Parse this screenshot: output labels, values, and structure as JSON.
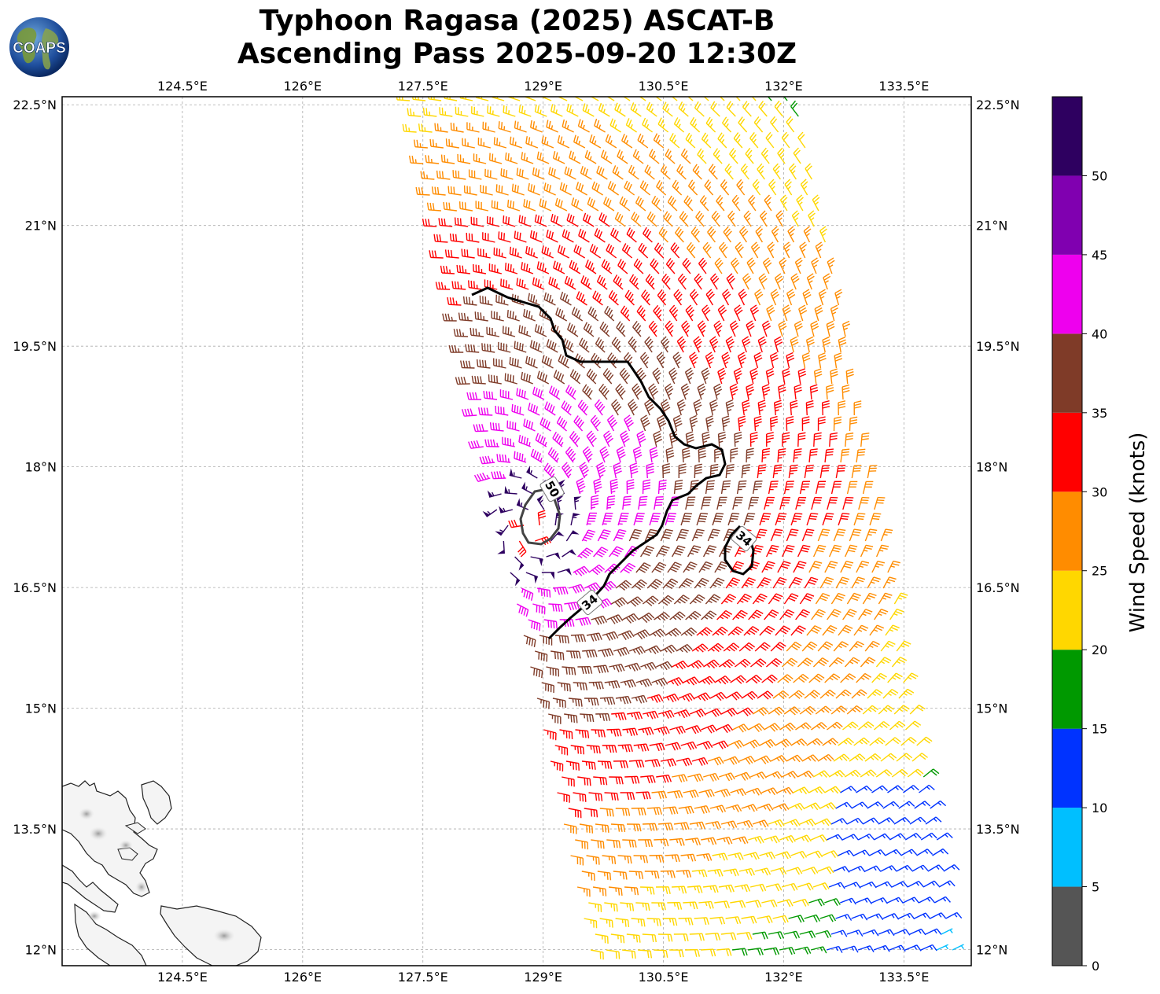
{
  "title": {
    "line1": "Typhoon Ragasa (2025) ASCAT-B",
    "line2": "Ascending Pass 2025-09-20 12:30Z"
  },
  "logo": {
    "text": "COAPS",
    "icon": "globe-logo-icon"
  },
  "map": {
    "lon_range": [
      123,
      134.34
    ],
    "lat_range": [
      11.8,
      22.6
    ],
    "lon_ticks": [
      "124.5°E",
      "126°E",
      "127.5°E",
      "129°E",
      "130.5°E",
      "132°E",
      "133.5°E"
    ],
    "lon_tick_values": [
      124.5,
      126,
      127.5,
      129,
      130.5,
      132,
      133.5
    ],
    "lat_ticks": [
      "22.5°N",
      "21°N",
      "19.5°N",
      "18°N",
      "16.5°N",
      "15°N",
      "13.5°N",
      "12°N"
    ],
    "lat_tick_values": [
      22.5,
      21,
      19.5,
      18,
      16.5,
      15,
      13.5,
      12
    ],
    "grid": true,
    "land": "Philippines (Luzon/Samar) in lower-left corner",
    "storm_center": {
      "lon": 128.8,
      "lat": 17.2
    }
  },
  "contours": [
    {
      "value": 34,
      "label": "34"
    },
    {
      "value": 34,
      "label": "34"
    },
    {
      "value": 50,
      "label": "50"
    }
  ],
  "colorbar": {
    "label": "Wind Speed (knots)",
    "ticks": [
      "0",
      "5",
      "10",
      "15",
      "20",
      "25",
      "30",
      "35",
      "40",
      "45",
      "50"
    ],
    "bins": [
      {
        "min": 0,
        "max": 5,
        "color": "#555555"
      },
      {
        "min": 5,
        "max": 10,
        "color": "#00bfff"
      },
      {
        "min": 10,
        "max": 15,
        "color": "#0033ff"
      },
      {
        "min": 15,
        "max": 20,
        "color": "#009900"
      },
      {
        "min": 20,
        "max": 25,
        "color": "#ffd700"
      },
      {
        "min": 25,
        "max": 30,
        "color": "#ff8c00"
      },
      {
        "min": 30,
        "max": 35,
        "color": "#ff0000"
      },
      {
        "min": 35,
        "max": 40,
        "color": "#7f3b28"
      },
      {
        "min": 40,
        "max": 45,
        "color": "#ee00ee"
      },
      {
        "min": 45,
        "max": 50,
        "color": "#8000b0"
      },
      {
        "min": 50,
        "max": 55,
        "color": "#2e0060"
      }
    ]
  }
}
